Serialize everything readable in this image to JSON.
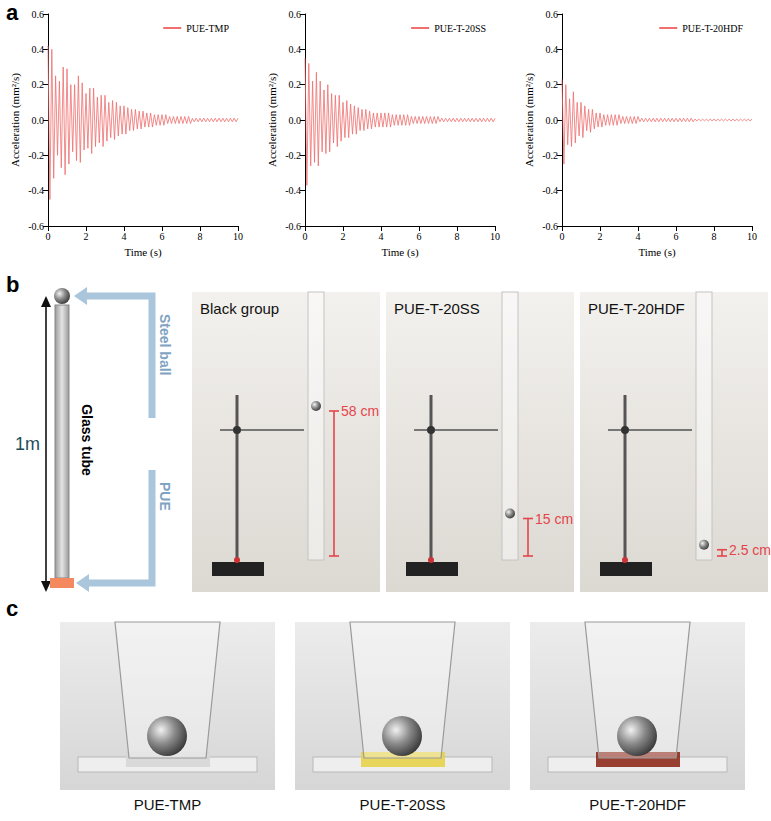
{
  "panel_letters": [
    "a",
    "b",
    "c"
  ],
  "chart_data": [
    {
      "type": "line",
      "x": [
        0,
        0.1,
        0.2,
        0.3,
        0.4,
        0.5,
        0.6,
        0.7,
        0.8,
        0.9,
        1,
        1.1,
        1.2,
        1.3,
        1.4,
        1.5,
        1.6,
        1.7,
        1.8,
        1.9,
        2,
        2.1,
        2.2,
        2.3,
        2.4,
        2.5,
        2.6,
        2.7,
        2.8,
        2.9,
        3,
        3.1,
        3.2,
        3.3,
        3.4,
        3.5,
        3.6,
        3.7,
        3.8,
        3.9,
        4,
        4.1,
        4.2,
        4.3,
        4.4,
        4.5,
        4.6,
        4.7,
        4.8,
        4.9,
        5,
        5.1,
        5.2,
        5.3,
        5.4,
        5.5,
        5.6,
        5.7,
        5.8,
        5.9,
        6,
        6.1,
        6.2,
        6.3,
        6.4,
        6.5,
        6.6,
        6.7,
        6.8,
        6.9,
        7,
        7.1,
        7.2,
        7.3,
        7.4,
        7.5,
        7.6,
        7.7,
        7.8,
        7.9,
        8,
        8.1,
        8.2,
        8.3,
        8.4,
        8.5,
        8.6,
        8.7,
        8.8,
        8.9,
        9,
        9.1,
        9.2,
        9.3,
        9.4,
        9.5,
        9.6,
        9.7,
        9.8,
        9.9,
        10
      ],
      "series": [
        {
          "name": "PUE-TMP",
          "color": "#ef6f6f",
          "values": [
            0.42,
            -0.45,
            0.4,
            -0.33,
            0.25,
            -0.2,
            0.22,
            -0.27,
            0.3,
            -0.31,
            0.29,
            -0.25,
            0.2,
            -0.18,
            0.2,
            -0.23,
            0.25,
            -0.24,
            0.21,
            -0.17,
            0.15,
            -0.16,
            0.18,
            -0.19,
            0.18,
            -0.15,
            0.13,
            -0.13,
            0.14,
            -0.15,
            0.14,
            -0.12,
            0.1,
            -0.1,
            0.11,
            -0.11,
            0.1,
            -0.09,
            0.08,
            -0.08,
            0.08,
            -0.08,
            0.07,
            -0.06,
            0.06,
            -0.06,
            0.06,
            -0.05,
            0.05,
            -0.05,
            0.05,
            -0.04,
            0.04,
            -0.04,
            0.04,
            -0.04,
            0.03,
            -0.03,
            0.03,
            -0.03,
            0.03,
            -0.03,
            0.03,
            -0.02,
            0.02,
            -0.02,
            0.02,
            -0.02,
            0.02,
            -0.02,
            0.02,
            -0.02,
            0.02,
            -0.02,
            0.02,
            -0.02,
            0.01,
            -0.01,
            0.01,
            -0.01,
            0.01,
            -0.01,
            0.01,
            -0.01,
            0.01,
            -0.01,
            0.01,
            -0.01,
            0.01,
            -0.01,
            0.01,
            -0.01,
            0.01,
            -0.01,
            0.01,
            -0.01,
            0.01,
            -0.01,
            0.01,
            -0.01,
            0.01
          ]
        }
      ],
      "xlabel": "Time (s)",
      "ylabel": "Acceleration (mm²/s)",
      "xlim": [
        0,
        10
      ],
      "xticks": [
        0,
        2,
        4,
        6,
        8,
        10
      ],
      "ylim": [
        -0.6,
        0.6
      ],
      "yticks": [
        -0.6,
        -0.4,
        -0.2,
        {
          "value": 0,
          "label": "0.0"
        },
        0.2,
        0.4,
        0.6
      ],
      "grid": false,
      "legend": "upper right"
    },
    {
      "type": "line",
      "x": [
        0,
        0.1,
        0.2,
        0.3,
        0.4,
        0.5,
        0.6,
        0.7,
        0.8,
        0.9,
        1,
        1.1,
        1.2,
        1.3,
        1.4,
        1.5,
        1.6,
        1.7,
        1.8,
        1.9,
        2,
        2.1,
        2.2,
        2.3,
        2.4,
        2.5,
        2.6,
        2.7,
        2.8,
        2.9,
        3,
        3.1,
        3.2,
        3.3,
        3.4,
        3.5,
        3.6,
        3.7,
        3.8,
        3.9,
        4,
        4.1,
        4.2,
        4.3,
        4.4,
        4.5,
        4.6,
        4.7,
        4.8,
        4.9,
        5,
        5.1,
        5.2,
        5.3,
        5.4,
        5.5,
        5.6,
        5.7,
        5.8,
        5.9,
        6,
        6.1,
        6.2,
        6.3,
        6.4,
        6.5,
        6.6,
        6.7,
        6.8,
        6.9,
        7,
        7.1,
        7.2,
        7.3,
        7.4,
        7.5,
        7.6,
        7.7,
        7.8,
        7.9,
        8,
        8.1,
        8.2,
        8.3,
        8.4,
        8.5,
        8.6,
        8.7,
        8.8,
        8.9,
        9,
        9.1,
        9.2,
        9.3,
        9.4,
        9.5,
        9.6,
        9.7,
        9.8,
        9.9,
        10
      ],
      "series": [
        {
          "name": "PUE-T-20SS",
          "color": "#ef6f6f",
          "values": [
            0.35,
            -0.37,
            0.32,
            -0.26,
            0.22,
            -0.24,
            0.27,
            -0.26,
            0.22,
            -0.18,
            0.17,
            -0.19,
            0.2,
            -0.18,
            0.15,
            -0.13,
            0.14,
            -0.15,
            0.14,
            -0.12,
            0.1,
            -0.1,
            0.11,
            -0.1,
            0.09,
            -0.08,
            0.08,
            -0.08,
            0.07,
            -0.06,
            0.06,
            -0.06,
            0.06,
            -0.05,
            0.05,
            -0.05,
            0.04,
            -0.04,
            0.04,
            -0.04,
            0.04,
            -0.04,
            0.04,
            -0.04,
            0.04,
            -0.04,
            0.03,
            -0.03,
            0.03,
            -0.03,
            0.03,
            -0.03,
            0.03,
            -0.03,
            0.03,
            -0.03,
            0.02,
            -0.02,
            0.02,
            -0.02,
            0.02,
            -0.02,
            0.02,
            -0.02,
            0.02,
            -0.02,
            0.02,
            -0.02,
            0.02,
            -0.02,
            0.02,
            -0.01,
            0.01,
            -0.01,
            0.01,
            -0.01,
            0.01,
            -0.01,
            0.01,
            -0.01,
            0.01,
            -0.01,
            0.01,
            -0.01,
            0.01,
            -0.01,
            0.01,
            -0.01,
            0.01,
            -0.01,
            0.01,
            -0.01,
            0.01,
            -0.01,
            0.01,
            -0.01,
            0.01,
            -0.01,
            0.01,
            -0.01,
            0.01
          ]
        }
      ],
      "xlabel": "Time (s)",
      "ylabel": "Acceleration (mm²/s)",
      "xlim": [
        0,
        10
      ],
      "xticks": [
        0,
        2,
        4,
        6,
        8,
        10
      ],
      "ylim": [
        -0.6,
        0.6
      ],
      "yticks": [
        -0.6,
        -0.4,
        -0.2,
        {
          "value": 0,
          "label": "0.0"
        },
        0.2,
        0.4,
        0.6
      ],
      "grid": false,
      "legend": "upper right"
    },
    {
      "type": "line",
      "x": [
        0,
        0.1,
        0.2,
        0.3,
        0.4,
        0.5,
        0.6,
        0.7,
        0.8,
        0.9,
        1,
        1.1,
        1.2,
        1.3,
        1.4,
        1.5,
        1.6,
        1.7,
        1.8,
        1.9,
        2,
        2.1,
        2.2,
        2.3,
        2.4,
        2.5,
        2.6,
        2.7,
        2.8,
        2.9,
        3,
        3.1,
        3.2,
        3.3,
        3.4,
        3.5,
        3.6,
        3.7,
        3.8,
        3.9,
        4,
        4.1,
        4.2,
        4.3,
        4.4,
        4.5,
        4.6,
        4.7,
        4.8,
        4.9,
        5,
        5.1,
        5.2,
        5.3,
        5.4,
        5.5,
        5.6,
        5.7,
        5.8,
        5.9,
        6,
        6.1,
        6.2,
        6.3,
        6.4,
        6.5,
        6.6,
        6.7,
        6.8,
        6.9,
        7,
        7.1,
        7.2,
        7.3,
        7.4,
        7.5,
        7.6,
        7.7,
        7.8,
        7.9,
        8,
        8.1,
        8.2,
        8.3,
        8.4,
        8.5,
        8.6,
        8.7,
        8.8,
        8.9,
        9,
        9.1,
        9.2,
        9.3,
        9.4,
        9.5,
        9.6,
        9.7,
        9.8,
        9.9,
        10
      ],
      "series": [
        {
          "name": "PUE-T-20HDF",
          "color": "#ef6f6f",
          "values": [
            0.23,
            -0.25,
            0.2,
            -0.14,
            0.12,
            -0.15,
            0.16,
            -0.13,
            0.1,
            -0.09,
            0.1,
            -0.1,
            0.08,
            -0.06,
            0.06,
            -0.07,
            0.06,
            -0.05,
            0.04,
            -0.04,
            0.04,
            -0.04,
            0.03,
            -0.03,
            0.03,
            -0.03,
            0.03,
            -0.03,
            0.03,
            -0.03,
            0.03,
            -0.02,
            0.02,
            -0.02,
            0.02,
            -0.02,
            0.02,
            -0.02,
            0.02,
            -0.02,
            0.02,
            -0.01,
            0.01,
            -0.01,
            0.01,
            -0.01,
            0.01,
            -0.01,
            0.01,
            -0.01,
            0.01,
            -0.01,
            0.01,
            -0.01,
            0.01,
            -0.01,
            0.01,
            -0.01,
            0.01,
            -0.01,
            0.01,
            -0.01,
            0.01,
            -0.01,
            0.01,
            -0.01,
            0.01,
            -0.01,
            0.01,
            -0.01,
            0.005,
            -0.005,
            0.005,
            -0.005,
            0.005,
            -0.005,
            0.005,
            -0.005,
            0.005,
            -0.005,
            0.005,
            -0.005,
            0.005,
            -0.005,
            0.005,
            -0.005,
            0.005,
            -0.005,
            0.005,
            -0.005,
            0.005,
            -0.005,
            0.005,
            -0.005,
            0.005,
            -0.005,
            0.005,
            -0.005,
            0.005,
            -0.005,
            0.005
          ]
        }
      ],
      "xlabel": "Time (s)",
      "ylabel": "Acceleration (mm²/s)",
      "xlim": [
        0,
        10
      ],
      "xticks": [
        0,
        2,
        4,
        6,
        8,
        10
      ],
      "ylim": [
        -0.6,
        0.6
      ],
      "yticks": [
        -0.6,
        -0.4,
        -0.2,
        {
          "value": 0,
          "label": "0.0"
        },
        0.2,
        0.4,
        0.6
      ],
      "grid": false,
      "legend": "upper right"
    }
  ],
  "drop_test": {
    "schematic": {
      "height": "1m",
      "tube": "Glass tube",
      "ball": "Steel ball",
      "sample": "PUE"
    },
    "photos": [
      {
        "title": "Black group",
        "rebound": {
          "value": 58,
          "label": "58 cm"
        }
      },
      {
        "title": "PUE-T-20SS",
        "rebound": {
          "value": 15,
          "label": "15 cm"
        }
      },
      {
        "title": "PUE-T-20HDF",
        "rebound": {
          "value": 2.5,
          "label": "2.5 cm"
        }
      }
    ]
  },
  "samples": [
    {
      "caption": "PUE-TMP",
      "color": "#d6d6d6"
    },
    {
      "caption": "PUE-T-20SS",
      "color": "#e6d34a"
    },
    {
      "caption": "PUE-T-20HDF",
      "color": "#8e2b1c"
    }
  ]
}
